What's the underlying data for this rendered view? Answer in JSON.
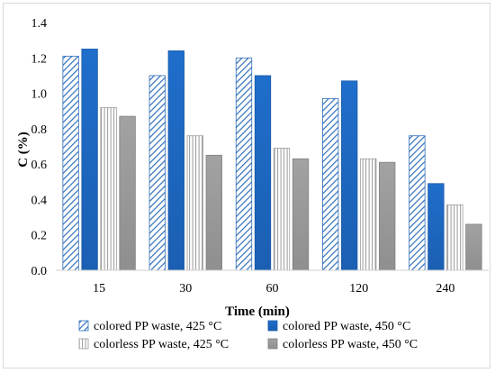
{
  "chart_data": {
    "type": "bar",
    "title": "",
    "xlabel": "Time (min)",
    "ylabel": "C (%)",
    "ylim": [
      0,
      1.4
    ],
    "yticks": [
      "0.0",
      "0.2",
      "0.4",
      "0.6",
      "0.8",
      "1.0",
      "1.2",
      "1.4"
    ],
    "categories": [
      "15",
      "30",
      "60",
      "120",
      "240"
    ],
    "series": [
      {
        "name": "colored PP waste, 425 °C",
        "values": [
          1.21,
          1.1,
          1.2,
          0.97,
          0.76
        ],
        "fill": "hatch-diagonal",
        "color": "#2f6fba"
      },
      {
        "name": "colored PP waste, 450 °C",
        "values": [
          1.25,
          1.24,
          1.1,
          1.07,
          0.49
        ],
        "fill": "solid",
        "color": "#1f6fc9"
      },
      {
        "name": "colorless PP waste, 425 °C",
        "values": [
          0.92,
          0.76,
          0.69,
          0.63,
          0.37
        ],
        "fill": "hatch-vertical",
        "color": "#9a9a9a"
      },
      {
        "name": "colorless PP waste, 450 °C",
        "values": [
          0.87,
          0.65,
          0.63,
          0.61,
          0.26
        ],
        "fill": "solid",
        "color": "#9b9b9b"
      }
    ],
    "grid": false,
    "legend_position": "bottom"
  }
}
